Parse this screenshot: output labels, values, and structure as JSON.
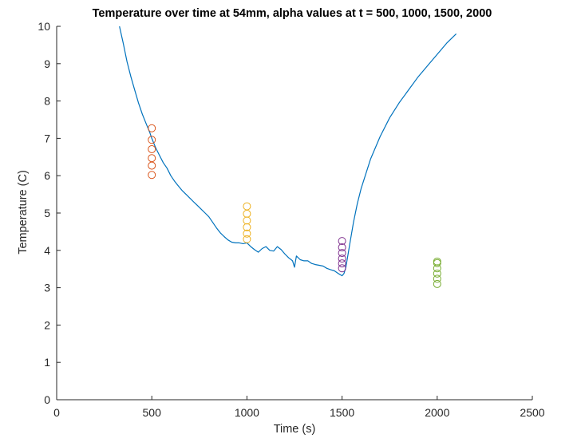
{
  "chart_data": {
    "type": "line",
    "title": "Temperature over time at 54mm, alpha values at t = 500, 1000, 1500, 2000",
    "xlabel": "Time (s)",
    "ylabel": "Temperature (C)",
    "xlim": [
      0,
      2500
    ],
    "ylim": [
      0,
      10
    ],
    "x_ticks": [
      0,
      500,
      1000,
      1500,
      2000,
      2500
    ],
    "y_ticks": [
      0,
      1,
      2,
      3,
      4,
      5,
      6,
      7,
      8,
      9,
      10
    ],
    "x_tick_labels": [
      "0",
      "500",
      "1000",
      "1500",
      "2000",
      "2500"
    ],
    "y_tick_labels": [
      "0",
      "1",
      "2",
      "3",
      "4",
      "5",
      "6",
      "7",
      "8",
      "9",
      "10"
    ],
    "grid": false,
    "box": "left-bottom",
    "line_series": {
      "color": "#0072BD",
      "x": [
        330,
        350,
        370,
        390,
        410,
        430,
        450,
        470,
        490,
        500,
        520,
        540,
        560,
        580,
        600,
        620,
        640,
        660,
        680,
        700,
        720,
        740,
        760,
        780,
        800,
        820,
        840,
        860,
        880,
        900,
        920,
        940,
        960,
        980,
        1000,
        1020,
        1040,
        1060,
        1080,
        1100,
        1120,
        1140,
        1160,
        1180,
        1200,
        1220,
        1240,
        1250,
        1260,
        1280,
        1300,
        1320,
        1340,
        1360,
        1380,
        1400,
        1420,
        1440,
        1460,
        1480,
        1500,
        1510,
        1520,
        1540,
        1560,
        1580,
        1600,
        1650,
        1700,
        1750,
        1800,
        1850,
        1900,
        1950,
        2000,
        2050,
        2100
      ],
      "y": [
        10,
        9.55,
        9.05,
        8.65,
        8.3,
        7.95,
        7.65,
        7.4,
        7.15,
        7.0,
        6.75,
        6.55,
        6.35,
        6.2,
        6.0,
        5.85,
        5.72,
        5.6,
        5.5,
        5.4,
        5.3,
        5.2,
        5.1,
        5.0,
        4.9,
        4.75,
        4.6,
        4.47,
        4.37,
        4.28,
        4.22,
        4.2,
        4.2,
        4.18,
        4.2,
        4.1,
        4.02,
        3.95,
        4.05,
        4.1,
        4.0,
        3.98,
        4.1,
        4.02,
        3.9,
        3.8,
        3.72,
        3.55,
        3.85,
        3.75,
        3.72,
        3.72,
        3.65,
        3.62,
        3.6,
        3.58,
        3.52,
        3.48,
        3.45,
        3.38,
        3.32,
        3.38,
        3.55,
        4.15,
        4.75,
        5.25,
        5.65,
        6.45,
        7.05,
        7.55,
        7.95,
        8.3,
        8.65,
        8.95,
        9.25,
        9.55,
        9.8
      ],
      "approximate": true
    },
    "marker_series": [
      {
        "x": 500,
        "y": [
          6.02,
          6.27,
          6.47,
          6.71,
          6.96,
          7.27
        ],
        "color": "#D95319",
        "marker": "circle"
      },
      {
        "x": 1000,
        "y": [
          4.3,
          4.45,
          4.62,
          4.8,
          4.98,
          5.18
        ],
        "color": "#EDB120",
        "marker": "circle"
      },
      {
        "x": 1500,
        "y": [
          3.52,
          3.65,
          3.78,
          3.93,
          4.08,
          4.25
        ],
        "color": "#7E2F8E",
        "marker": "circle"
      },
      {
        "x": 2000,
        "y": [
          3.1,
          3.24,
          3.38,
          3.52,
          3.66,
          3.7
        ],
        "color": "#77AC30",
        "marker": "circle"
      }
    ]
  }
}
